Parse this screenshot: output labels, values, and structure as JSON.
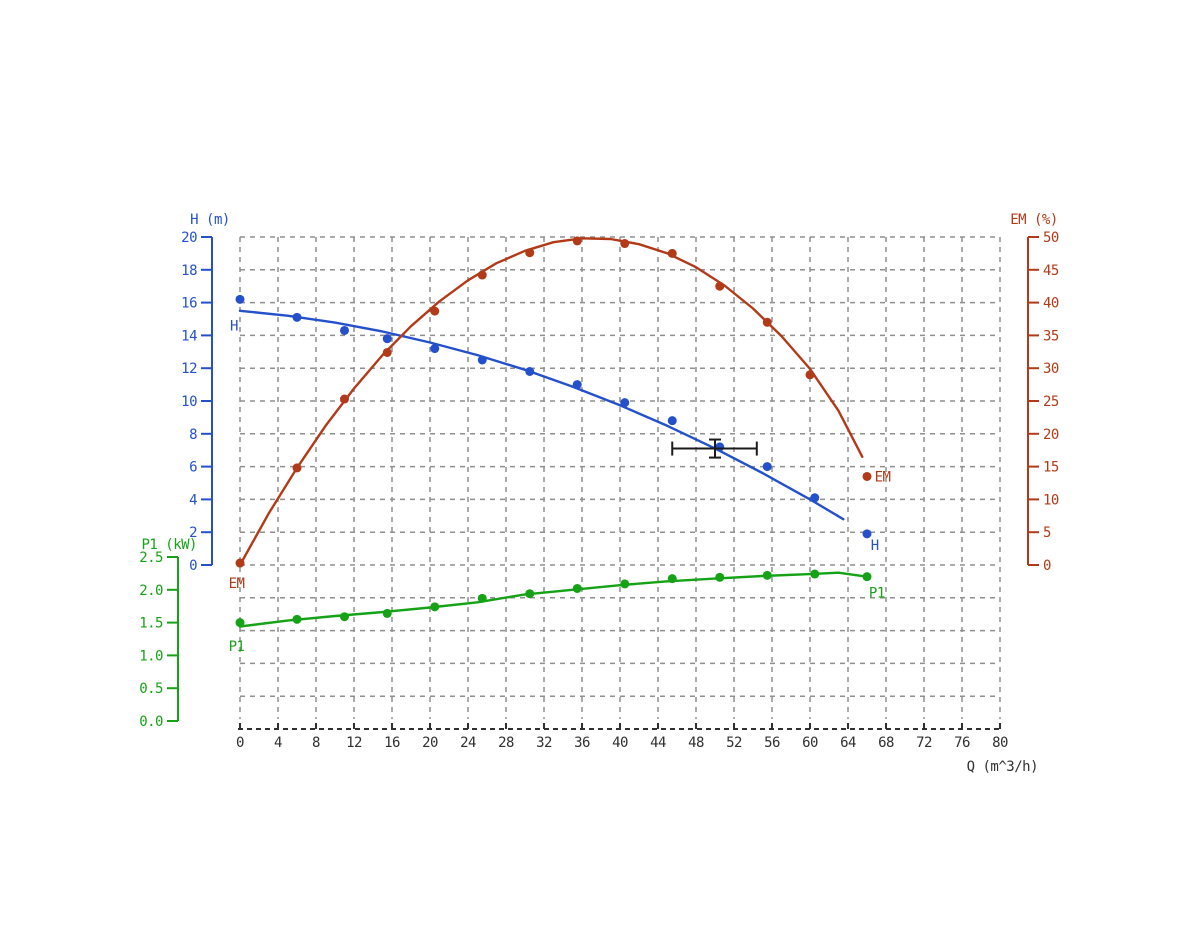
{
  "chart_data": {
    "type": "line",
    "title": "",
    "x_axis": {
      "label": "Q (m^3/h)",
      "min": 0,
      "max": 80,
      "tick_step": 4,
      "ticks": [
        "0",
        "4",
        "8",
        "12",
        "16",
        "20",
        "24",
        "28",
        "32",
        "36",
        "40",
        "44",
        "48",
        "52",
        "56",
        "60",
        "64",
        "68",
        "72",
        "76",
        "80"
      ],
      "color": "#303030"
    },
    "left_axis": {
      "label": "H (m)",
      "min": 0,
      "max": 20,
      "tick_step": 2,
      "ticks": [
        "20",
        "18",
        "16",
        "14",
        "12",
        "10",
        "8",
        "6",
        "4",
        "2",
        "0"
      ],
      "color": "#2450cc"
    },
    "right_axis": {
      "label": "EM (%)",
      "min": 0,
      "max": 50,
      "tick_step": 5,
      "ticks": [
        "50",
        "45",
        "40",
        "35",
        "30",
        "25",
        "20",
        "15",
        "10",
        "5",
        "0"
      ],
      "color": "#b23a18"
    },
    "power_axis": {
      "label": "P1 (kW)",
      "min": 0,
      "max": 2.5,
      "tick_step": 0.5,
      "ticks": [
        "2.5",
        "2.0",
        "1.5",
        "1.0",
        "0.5",
        "0.0"
      ],
      "color": "#16a216"
    },
    "grid": {
      "on": true,
      "color": "#8f8f8f",
      "style": "dashed"
    },
    "series": [
      {
        "name": "H",
        "axis": "left",
        "color": "#2450cc",
        "points": [
          [
            0,
            16.2
          ],
          [
            6,
            15.1
          ],
          [
            11,
            14.3
          ],
          [
            15.5,
            13.8
          ],
          [
            20.5,
            13.2
          ],
          [
            25.5,
            12.5
          ],
          [
            30.5,
            11.8
          ],
          [
            35.5,
            11.0
          ],
          [
            40.5,
            9.9
          ],
          [
            45.5,
            8.8
          ],
          [
            50.5,
            7.2
          ],
          [
            55.5,
            6.0
          ],
          [
            60.5,
            4.1
          ],
          [
            66,
            1.9
          ]
        ],
        "curve": [
          [
            0,
            15.5
          ],
          [
            5,
            15.2
          ],
          [
            10,
            14.78
          ],
          [
            15,
            14.24
          ],
          [
            20,
            13.57
          ],
          [
            25,
            12.8
          ],
          [
            30,
            11.9
          ],
          [
            35,
            10.88
          ],
          [
            40,
            9.74
          ],
          [
            45,
            8.48
          ],
          [
            50,
            7.11
          ],
          [
            55,
            5.61
          ],
          [
            60,
            4.0
          ],
          [
            63.5,
            2.79
          ]
        ],
        "labels": {
          "left": {
            "text": "H",
            "q": -1.05,
            "v": 14.3
          },
          "right": {
            "text": "H",
            "q": 66.4,
            "v": 0.9
          }
        }
      },
      {
        "name": "EM",
        "axis": "right",
        "color": "#b23a18",
        "points": [
          [
            0,
            0.3
          ],
          [
            6,
            14.8
          ],
          [
            11,
            25.3
          ],
          [
            15.5,
            32.4
          ],
          [
            20.5,
            38.7
          ],
          [
            25.5,
            44.2
          ],
          [
            30.5,
            47.6
          ],
          [
            35.5,
            49.4
          ],
          [
            40.5,
            49.0
          ],
          [
            45.5,
            47.5
          ],
          [
            50.5,
            42.5
          ],
          [
            55.5,
            37.0
          ],
          [
            60,
            29.0
          ],
          [
            66,
            13.5
          ]
        ],
        "curve": [
          [
            0,
            0
          ],
          [
            3,
            7.8
          ],
          [
            6,
            14.8
          ],
          [
            9,
            21.2
          ],
          [
            12,
            26.9
          ],
          [
            15,
            32.0
          ],
          [
            18,
            36.4
          ],
          [
            21,
            40.2
          ],
          [
            24,
            43.4
          ],
          [
            27,
            46.0
          ],
          [
            30,
            47.9
          ],
          [
            33,
            49.2
          ],
          [
            36,
            49.8
          ],
          [
            39,
            49.7
          ],
          [
            42,
            48.9
          ],
          [
            45,
            47.5
          ],
          [
            48,
            45.4
          ],
          [
            51,
            42.6
          ],
          [
            54,
            39.1
          ],
          [
            57,
            34.9
          ],
          [
            60,
            29.9
          ],
          [
            63,
            23.5
          ],
          [
            65.5,
            16.5
          ]
        ],
        "labels": {
          "left": {
            "text": "EM",
            "q": -1.2,
            "v": -3.5
          },
          "right": {
            "text": "EM",
            "q": 66.8,
            "v": 12.7
          }
        }
      },
      {
        "name": "P1",
        "axis": "power",
        "color": "#16a216",
        "points": [
          [
            0,
            1.5
          ],
          [
            6,
            1.55
          ],
          [
            11,
            1.59
          ],
          [
            15.5,
            1.64
          ],
          [
            20.5,
            1.74
          ],
          [
            25.5,
            1.87
          ],
          [
            30.5,
            1.94
          ],
          [
            35.5,
            2.02
          ],
          [
            40.5,
            2.09
          ],
          [
            45.5,
            2.17
          ],
          [
            50.5,
            2.19
          ],
          [
            55.5,
            2.22
          ],
          [
            60.5,
            2.24
          ],
          [
            66,
            2.2
          ]
        ],
        "curve": [
          [
            0,
            1.44
          ],
          [
            5,
            1.53
          ],
          [
            10,
            1.6
          ],
          [
            15,
            1.66
          ],
          [
            20,
            1.73
          ],
          [
            25,
            1.81
          ],
          [
            30,
            1.93
          ],
          [
            35,
            2.0
          ],
          [
            40,
            2.07
          ],
          [
            45,
            2.13
          ],
          [
            50,
            2.17
          ],
          [
            55,
            2.21
          ],
          [
            60,
            2.24
          ],
          [
            63,
            2.26
          ],
          [
            66,
            2.2
          ]
        ],
        "labels": {
          "left": {
            "text": "P1",
            "q": -1.2,
            "v": 1.07
          },
          "right": {
            "text": "P1",
            "q": 66.2,
            "v": 1.88
          }
        }
      }
    ],
    "operating_point_marker": {
      "axis": "left",
      "color": "#1a1a1a",
      "q": 50,
      "v": 7.1,
      "q_min": 45.5,
      "q_max": 54.4,
      "v_min": 6.55,
      "v_max": 7.65
    }
  }
}
